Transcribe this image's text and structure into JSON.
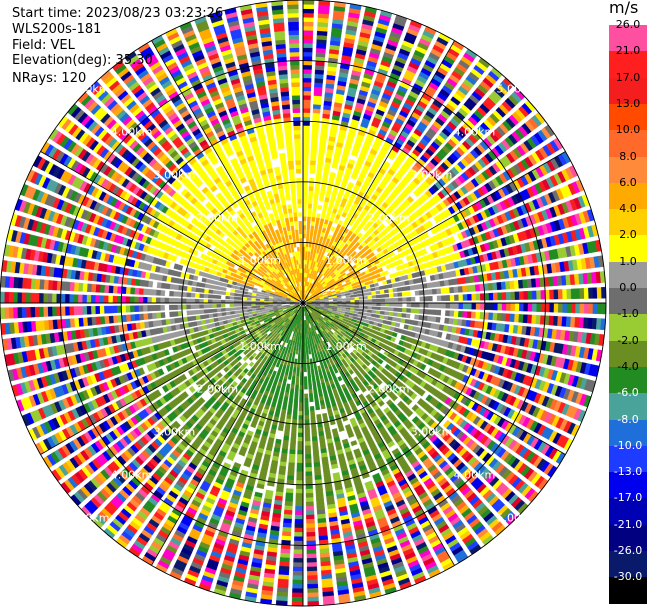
{
  "info": {
    "start_time": "Start time: 2023/08/23 03:23:26",
    "instrument": "WLS200s-181",
    "field": "Field: VEL",
    "elevation": "Elevation(deg): 35.30",
    "nrays": "NRays: 120"
  },
  "chart_data": {
    "type": "heatmap",
    "subtype": "polar-ppi",
    "field": "VEL",
    "units": "m/s",
    "n_rays": 120,
    "range_rings_km": [
      1.0,
      2.0,
      3.0,
      4.0,
      5.0
    ],
    "range_ring_labels": [
      "1.00km",
      "2.00km",
      "3.00km",
      "4.00km",
      "5.00km"
    ],
    "max_range_km": 5.0,
    "spoke_angles_deg": [
      0,
      30,
      60,
      90,
      120,
      150,
      180,
      210,
      240,
      270,
      300,
      330
    ],
    "colorbar": {
      "title": "m/s",
      "tick_labels": [
        "26.0",
        "21.0",
        "17.0",
        "13.0",
        "10.0",
        "8.0",
        "6.0",
        "4.0",
        "2.0",
        "1.0",
        "0.0",
        "-1.0",
        "-2.0",
        "-4.0",
        "-6.0",
        "-8.0",
        "-10.0",
        "-13.0",
        "-17.0",
        "-21.0",
        "-26.0",
        "-30.0"
      ],
      "colors": [
        "#ff4fa0",
        "#ff1f1f",
        "#f41e1e",
        "#ff4a00",
        "#ff6a2a",
        "#ff8a3a",
        "#ffaa00",
        "#ffd000",
        "#ffff00",
        "#9a9a9a",
        "#6e6e6e",
        "#99cc33",
        "#6b8e23",
        "#228b22",
        "#4aa39a",
        "#1e6fd9",
        "#1e3cff",
        "#0000ee",
        "#0000b4",
        "#000080",
        "#0a1a6a",
        "#000000"
      ]
    },
    "scene": {
      "near_field_radius_km": 2.6,
      "noise_start_km": 2.6,
      "approach_sector": "yellow-orange (positive) to the north",
      "receding_sector": "green (negative) to the south",
      "calm_sector": "gray (~0) east and west"
    }
  }
}
